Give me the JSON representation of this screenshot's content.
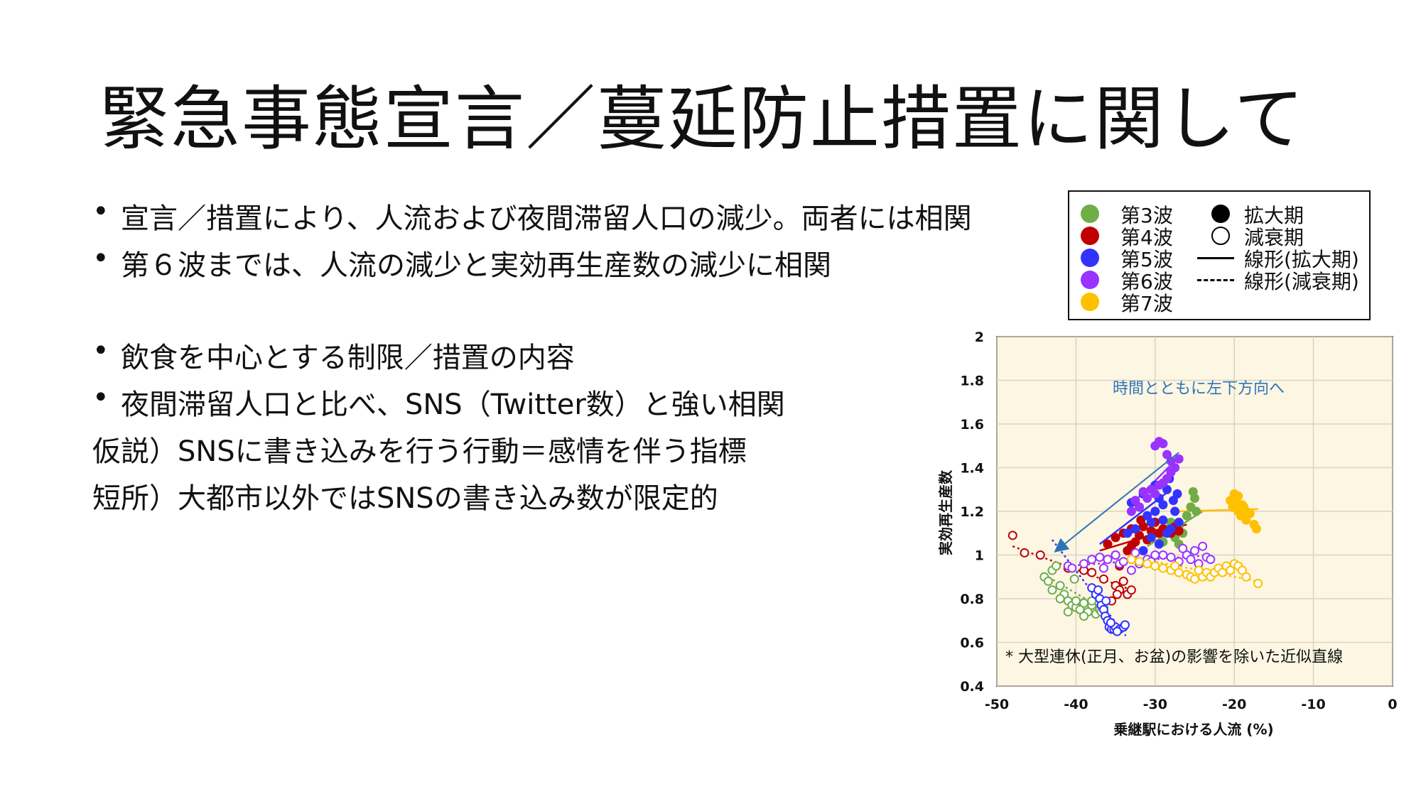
{
  "slide": {
    "title": "緊急事態宣言／蔓延防止措置に関して",
    "bullets": [
      {
        "text": "宣言／措置により、人流および夜間滞留人口の減少。両者には相関",
        "bullet": true
      },
      {
        "text": "第６波までは、人流の減少と実効再生産数の減少に相関",
        "bullet": true
      },
      {
        "text": "飲食を中心とする制限／措置の内容",
        "bullet": true
      },
      {
        "text": "夜間滞留人口と比べ、SNS（Twitter数）と強い相関",
        "bullet": true
      },
      {
        "text": "仮説）SNSに書き込みを行う行動＝感情を伴う指標",
        "bullet": false
      },
      {
        "text": "短所）大都市以外ではSNSの書き込み数が限定的",
        "bullet": false
      }
    ]
  },
  "legend": {
    "waves": [
      {
        "label": "第3波",
        "color": "#70ad47"
      },
      {
        "label": "第4波",
        "color": "#c00000"
      },
      {
        "label": "第5波",
        "color": "#3333ff"
      },
      {
        "label": "第6波",
        "color": "#9933ff"
      },
      {
        "label": "第7波",
        "color": "#ffc000"
      }
    ],
    "markers": [
      {
        "label": "拡大期",
        "style": "filled"
      },
      {
        "label": "減衰期",
        "style": "open"
      },
      {
        "label": "線形(拡大期)",
        "style": "solid-line"
      },
      {
        "label": "線形(減衰期)",
        "style": "dashed-line"
      }
    ]
  },
  "chart_data": {
    "type": "scatter",
    "xlabel": "乗継駅における人流 (%)",
    "ylabel": "実効再生産数",
    "xlim": [
      -50,
      0
    ],
    "ylim": [
      0.4,
      2
    ],
    "xticks": [
      "-50",
      "-40",
      "-30",
      "-20",
      "-10",
      "0"
    ],
    "yticks": [
      "0.4",
      "0.6",
      "0.8",
      "1",
      "1.2",
      "1.4",
      "1.6",
      "1.8",
      "2"
    ],
    "grid": true,
    "background": "#fdf6e3",
    "annotation_arrow": {
      "text": "時間とともに左下方向へ",
      "from": [
        -27,
        1.47
      ],
      "to": [
        -42.5,
        1.02
      ],
      "color": "#2e75b6"
    },
    "footnote": "* 大型連休(正月、お盆)の影響を除いた近似直線",
    "series": [
      {
        "name": "第3波",
        "color": "#70ad47",
        "growth": [
          [
            -31,
            1.07
          ],
          [
            -30,
            1.1
          ],
          [
            -29,
            1.06
          ],
          [
            -28.5,
            1.12
          ],
          [
            -28,
            1.15
          ],
          [
            -27.5,
            1.08
          ],
          [
            -27,
            1.13
          ],
          [
            -26,
            1.18
          ],
          [
            -25.5,
            1.22
          ],
          [
            -25,
            1.26
          ],
          [
            -25.2,
            1.29
          ],
          [
            -24.8,
            1.2
          ],
          [
            -26.5,
            1.1
          ],
          [
            -27,
            1.05
          ]
        ],
        "decay": [
          [
            -44,
            0.9
          ],
          [
            -43.5,
            0.88
          ],
          [
            -43,
            0.93
          ],
          [
            -42.5,
            0.95
          ],
          [
            -42,
            0.86
          ],
          [
            -41.5,
            0.82
          ],
          [
            -41,
            0.79
          ],
          [
            -40.5,
            0.77
          ],
          [
            -40,
            0.76
          ],
          [
            -39.5,
            0.75
          ],
          [
            -39,
            0.78
          ],
          [
            -38.5,
            0.74
          ],
          [
            -38,
            0.77
          ],
          [
            -37.5,
            0.73
          ],
          [
            -37,
            0.75
          ],
          [
            -36.5,
            0.76
          ],
          [
            -42,
            0.8
          ],
          [
            -41,
            0.74
          ],
          [
            -40,
            0.79
          ],
          [
            -39,
            0.72
          ],
          [
            -38,
            0.79
          ],
          [
            -36.8,
            0.74
          ],
          [
            -43,
            0.84
          ],
          [
            -40.2,
            0.89
          ]
        ],
        "growth_fit": [
          [
            -31,
            1.04
          ],
          [
            -24,
            1.2
          ]
        ],
        "decay_fit": [
          [
            -44,
            0.91
          ],
          [
            -36,
            0.74
          ]
        ]
      },
      {
        "name": "第4波",
        "color": "#c00000",
        "growth": [
          [
            -36,
            1.05
          ],
          [
            -35,
            1.08
          ],
          [
            -34,
            1.1
          ],
          [
            -33.5,
            1.02
          ],
          [
            -33,
            1.12
          ],
          [
            -32.5,
            1.06
          ],
          [
            -32,
            1.09
          ],
          [
            -31.5,
            1.13
          ],
          [
            -31,
            1.07
          ],
          [
            -30.5,
            1.11
          ],
          [
            -30,
            1.15
          ],
          [
            -29.5,
            1.1
          ],
          [
            -29,
            1.12
          ],
          [
            -28,
            1.1
          ],
          [
            -27.5,
            1.13
          ],
          [
            -27,
            1.11
          ],
          [
            -35,
            1.0
          ],
          [
            -34.5,
            0.95
          ],
          [
            -33,
            1.04
          ],
          [
            -31.8,
            1.16
          ]
        ],
        "decay": [
          [
            -48,
            1.09
          ],
          [
            -46.5,
            1.01
          ],
          [
            -44.5,
            1.0
          ],
          [
            -41,
            0.94
          ],
          [
            -39,
            0.93
          ],
          [
            -38,
            0.92
          ],
          [
            -36.5,
            0.89
          ],
          [
            -35,
            0.86
          ],
          [
            -34.5,
            0.84
          ],
          [
            -34,
            0.88
          ],
          [
            -33.5,
            0.82
          ],
          [
            -33,
            0.84
          ],
          [
            -35.5,
            0.79
          ],
          [
            -34.8,
            0.82
          ]
        ],
        "growth_fit": [
          [
            -37,
            1.02
          ],
          [
            -26,
            1.14
          ]
        ],
        "decay_fit": [
          [
            -48,
            1.04
          ],
          [
            -33,
            0.84
          ]
        ]
      },
      {
        "name": "第5波",
        "color": "#3333ff",
        "growth": [
          [
            -33,
            1.24
          ],
          [
            -32,
            1.22
          ],
          [
            -31.5,
            1.28
          ],
          [
            -31,
            1.18
          ],
          [
            -30.5,
            1.15
          ],
          [
            -30,
            1.2
          ],
          [
            -29.5,
            1.26
          ],
          [
            -29,
            1.23
          ],
          [
            -28.5,
            1.3
          ],
          [
            -28.2,
            1.35
          ],
          [
            -28,
            1.38
          ],
          [
            -27.7,
            1.25
          ],
          [
            -27.5,
            1.2
          ],
          [
            -27,
            1.15
          ],
          [
            -28.5,
            1.1
          ],
          [
            -29.5,
            1.05
          ],
          [
            -30.5,
            1.08
          ],
          [
            -31.5,
            1.02
          ],
          [
            -32.5,
            1.12
          ],
          [
            -33.5,
            1.1
          ],
          [
            -29,
            1.16
          ],
          [
            -28,
            1.12
          ],
          [
            -27.2,
            1.28
          ],
          [
            -30,
            1.32
          ]
        ],
        "decay": [
          [
            -38,
            0.85
          ],
          [
            -37.5,
            0.82
          ],
          [
            -37,
            0.8
          ],
          [
            -36.8,
            0.77
          ],
          [
            -36.5,
            0.75
          ],
          [
            -36.3,
            0.72
          ],
          [
            -36,
            0.7
          ],
          [
            -35.8,
            0.67
          ],
          [
            -35.5,
            0.66
          ],
          [
            -35.2,
            0.66
          ],
          [
            -35,
            0.67
          ],
          [
            -34.5,
            0.66
          ],
          [
            -34,
            0.67
          ],
          [
            -33.8,
            0.68
          ],
          [
            -36.2,
            0.79
          ],
          [
            -37.2,
            0.84
          ],
          [
            -35.6,
            0.69
          ],
          [
            -34.8,
            0.65
          ]
        ],
        "growth_fit": [
          [
            -37,
            1.05
          ],
          [
            -28,
            1.3
          ]
        ],
        "decay_fit": [
          [
            -43,
            1.07
          ],
          [
            -33.7,
            0.63
          ]
        ]
      },
      {
        "name": "第6波",
        "color": "#9933ff",
        "growth": [
          [
            -30,
            1.5
          ],
          [
            -29.5,
            1.52
          ],
          [
            -29,
            1.51
          ],
          [
            -28.5,
            1.46
          ],
          [
            -28,
            1.43
          ],
          [
            -27,
            1.44
          ],
          [
            -27.5,
            1.4
          ],
          [
            -29.5,
            1.32
          ],
          [
            -30,
            1.28
          ],
          [
            -30.5,
            1.3
          ],
          [
            -31,
            1.26
          ],
          [
            -31.5,
            1.29
          ],
          [
            -32,
            1.22
          ],
          [
            -32.5,
            1.25
          ],
          [
            -33,
            1.2
          ],
          [
            -28,
            1.38
          ],
          [
            -28.5,
            1.35
          ],
          [
            -29,
            1.33
          ]
        ],
        "decay": [
          [
            -41,
            0.95
          ],
          [
            -40.5,
            0.94
          ],
          [
            -39,
            0.96
          ],
          [
            -38,
            0.98
          ],
          [
            -37,
            0.99
          ],
          [
            -36.5,
            0.94
          ],
          [
            -36,
            0.98
          ],
          [
            -35,
            1.0
          ],
          [
            -34.5,
            0.96
          ],
          [
            -34,
            0.97
          ],
          [
            -33,
            0.93
          ],
          [
            -32,
            0.96
          ],
          [
            -31,
            0.98
          ],
          [
            -30,
            1.0
          ],
          [
            -29,
            1.0
          ],
          [
            -28,
            0.99
          ],
          [
            -27,
            0.97
          ],
          [
            -26,
            1.0
          ],
          [
            -25,
            1.02
          ],
          [
            -25.5,
            0.98
          ],
          [
            -24.5,
            0.96
          ],
          [
            -24,
            1.04
          ],
          [
            -23.5,
            0.99
          ],
          [
            -23,
            0.98
          ],
          [
            -26.5,
            1.03
          ],
          [
            -30.5,
            0.97
          ],
          [
            -32.5,
            1.01
          ]
        ],
        "growth_fit": [
          [
            -33,
            1.23
          ],
          [
            -27,
            1.45
          ]
        ],
        "decay_fit": [
          [
            -41,
            0.95
          ],
          [
            -23,
            1.0
          ]
        ]
      },
      {
        "name": "第7波",
        "color": "#ffc000",
        "growth": [
          [
            -20,
            1.28
          ],
          [
            -19.5,
            1.27
          ],
          [
            -19.8,
            1.24
          ],
          [
            -20.2,
            1.22
          ],
          [
            -19,
            1.23
          ],
          [
            -19.5,
            1.2
          ],
          [
            -18.5,
            1.2
          ],
          [
            -18,
            1.19
          ],
          [
            -18.5,
            1.16
          ],
          [
            -17.5,
            1.14
          ],
          [
            -17.2,
            1.12
          ],
          [
            -19.2,
            1.18
          ],
          [
            -20.5,
            1.25
          ],
          [
            -18.8,
            1.22
          ]
        ],
        "decay": [
          [
            -33,
            0.98
          ],
          [
            -32,
            0.97
          ],
          [
            -31,
            0.96
          ],
          [
            -30,
            0.95
          ],
          [
            -29,
            0.94
          ],
          [
            -28,
            0.93
          ],
          [
            -27,
            0.92
          ],
          [
            -26,
            0.91
          ],
          [
            -25.5,
            0.9
          ],
          [
            -25,
            0.89
          ],
          [
            -24,
            0.9
          ],
          [
            -23.5,
            0.92
          ],
          [
            -23,
            0.9
          ],
          [
            -22.5,
            0.92
          ],
          [
            -22,
            0.94
          ],
          [
            -21.5,
            0.92
          ],
          [
            -21,
            0.95
          ],
          [
            -20.5,
            0.93
          ],
          [
            -20,
            0.96
          ],
          [
            -19.5,
            0.95
          ],
          [
            -19,
            0.93
          ],
          [
            -18.5,
            0.9
          ],
          [
            -17,
            0.87
          ],
          [
            -27.5,
            0.95
          ],
          [
            -24.5,
            0.93
          ]
        ],
        "growth_fit": [
          [
            -27,
            1.2
          ],
          [
            -17,
            1.21
          ]
        ],
        "decay_fit": [
          [
            -33,
            0.99
          ],
          [
            -17,
            0.88
          ]
        ]
      }
    ]
  }
}
